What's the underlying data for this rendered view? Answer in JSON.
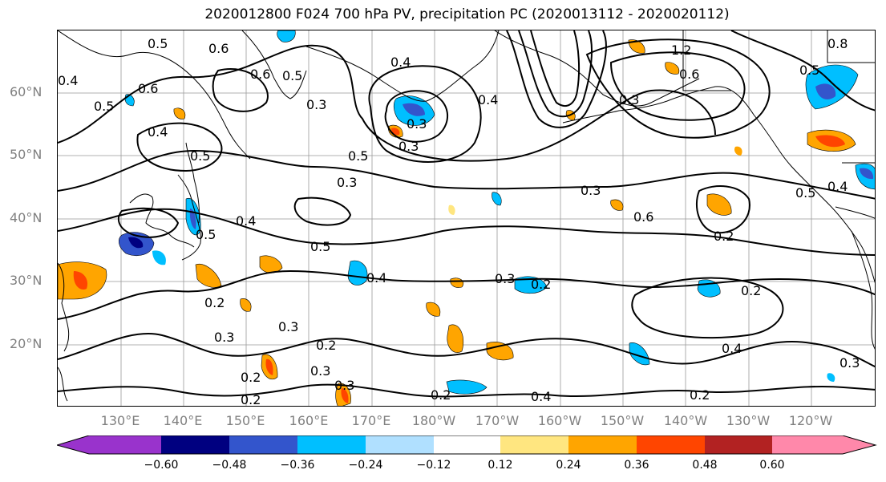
{
  "title": "2020012800 F024 700 hPa PV, precipitation PC (2020013112 - 2020020112)",
  "lat_labels": [
    "60°N",
    "50°N",
    "40°N",
    "30°N",
    "20°N"
  ],
  "lon_labels": [
    "130°E",
    "140°E",
    "150°E",
    "160°E",
    "170°E",
    "180°W",
    "170°W",
    "160°W",
    "150°W",
    "140°W",
    "130°W",
    "120°W"
  ],
  "colorbar": {
    "ticks": [
      "−0.60",
      "−0.48",
      "−0.36",
      "−0.24",
      "−0.12",
      "0.12",
      "0.24",
      "0.36",
      "0.48",
      "0.60"
    ],
    "colors": [
      "#9933cc",
      "#000080",
      "#3355cc",
      "#00bfff",
      "#b0e0ff",
      "#ffffff",
      "#ffe680",
      "#ffa500",
      "#ff4500",
      "#b22222",
      "#ff88aa"
    ]
  },
  "contour_labels": [
    "0.5",
    "0.6",
    "0.4",
    "0.5",
    "0.6",
    "0.5",
    "0.4",
    "0.5",
    "0.6",
    "0.3",
    "0.4",
    "0.5",
    "0.3",
    "0.3",
    "0.5",
    "0.4",
    "0.5",
    "0.4",
    "0.3",
    "0.4",
    "0.2",
    "0.3",
    "0.2",
    "0.3",
    "0.3",
    "0.2",
    "0.2",
    "0.2",
    "0.3",
    "0.2",
    "0.4",
    "0.3",
    "0.6",
    "0.3",
    "0.2",
    "0.2",
    "0.4",
    "0.3",
    "0.2",
    "1.2",
    "0.8",
    "0.5",
    "0.4",
    "0.5",
    "0.6",
    "0.3"
  ],
  "colors": {
    "map_border": "#000000",
    "grid": "#999999",
    "coast": "#000000",
    "contour": "#000000",
    "axis_label": "#808080"
  }
}
